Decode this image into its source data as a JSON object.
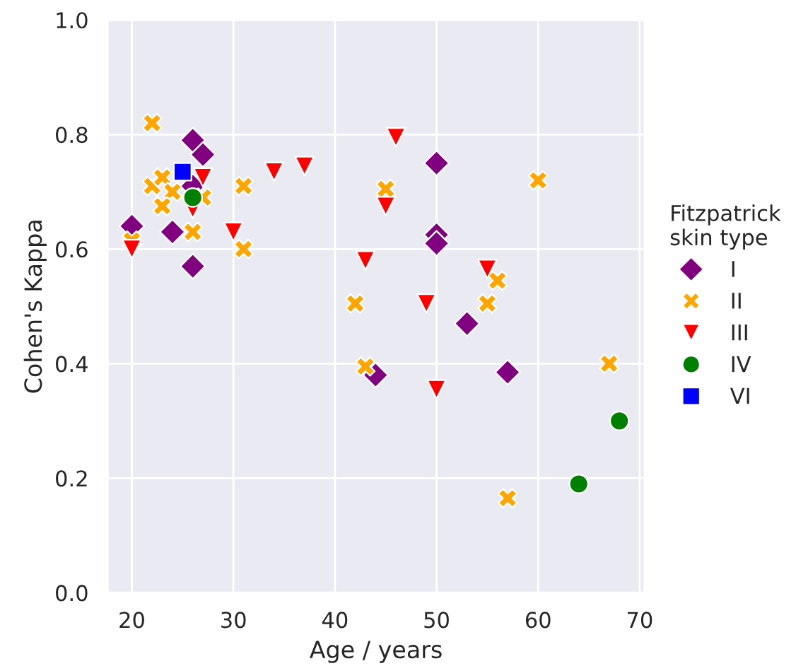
{
  "chart_data": {
    "type": "scatter",
    "xlabel": "Age / years",
    "ylabel": "Cohen's Kappa",
    "legend_title": "Fitzpatrick\nskin type",
    "legend": "right",
    "grid": true,
    "xlim": [
      17.6,
      70.5
    ],
    "xticks": [
      20,
      30,
      40,
      50,
      60,
      70
    ],
    "ylim": [
      0,
      1
    ],
    "yticks": [
      {
        "value": 0,
        "label": "0.0"
      },
      {
        "value": 0.2,
        "label": "0.2"
      },
      {
        "value": 0.4,
        "label": "0.4"
      },
      {
        "value": 0.6,
        "label": "0.6"
      },
      {
        "value": 0.8,
        "label": "0.8"
      },
      {
        "value": 1,
        "label": "1.0"
      }
    ],
    "series": [
      {
        "name": "I",
        "color": "#800080",
        "marker": "diamond",
        "x": [
          20,
          24,
          26,
          26,
          27,
          26,
          50,
          50,
          50,
          44,
          53,
          57
        ],
        "values": [
          0.64,
          0.63,
          0.57,
          0.79,
          0.765,
          0.71,
          0.75,
          0.625,
          0.61,
          0.38,
          0.47,
          0.385
        ]
      },
      {
        "name": "II",
        "color": "#ffa500",
        "marker": "cross",
        "x": [
          22,
          22,
          23,
          24,
          23,
          27,
          26,
          31,
          31,
          20,
          42,
          43,
          55,
          56,
          57,
          45,
          60,
          67
        ],
        "values": [
          0.82,
          0.71,
          0.725,
          0.7,
          0.675,
          0.69,
          0.63,
          0.71,
          0.6,
          0.615,
          0.505,
          0.395,
          0.505,
          0.545,
          0.165,
          0.705,
          0.72,
          0.4
        ]
      },
      {
        "name": "III",
        "color": "#ff0000",
        "marker": "triangle",
        "x": [
          20,
          27,
          26,
          30,
          34,
          37,
          46,
          45,
          43,
          49,
          50,
          55
        ],
        "values": [
          0.6,
          0.725,
          0.67,
          0.63,
          0.735,
          0.745,
          0.795,
          0.675,
          0.58,
          0.505,
          0.355,
          0.565
        ]
      },
      {
        "name": "IV",
        "color": "#008000",
        "marker": "circle",
        "x": [
          26,
          64,
          68
        ],
        "values": [
          0.69,
          0.19,
          0.3
        ]
      },
      {
        "name": "VI",
        "color": "#0000ff",
        "marker": "square",
        "x": [
          25
        ],
        "values": [
          0.735
        ]
      }
    ]
  }
}
